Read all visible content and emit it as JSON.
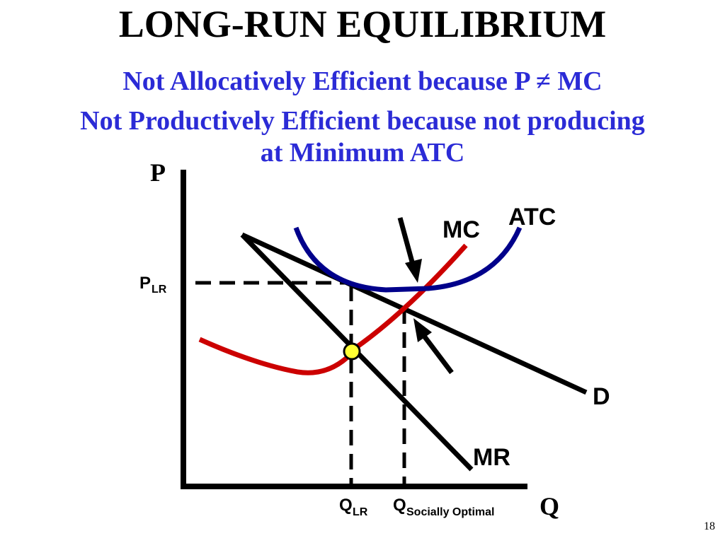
{
  "title": "LONG-RUN EQUILIBRIUM",
  "subtitle_lines": [
    "Not Allocatively Efficient because P ≠ MC",
    "Not Productively Efficient because not producing",
    "at Minimum ATC"
  ],
  "axes": {
    "y_label": "P",
    "x_label": "Q"
  },
  "curve_labels": {
    "mc": "MC",
    "atc": "ATC",
    "demand": "D",
    "mr": "MR"
  },
  "price_label": {
    "main": "P",
    "sub": "LR"
  },
  "quantity_labels": [
    {
      "main": "Q",
      "sub": "LR"
    },
    {
      "main": "Q",
      "sub": "Socially Optimal"
    }
  ],
  "colors": {
    "atc": "#00008b",
    "mc": "#cc0000",
    "subtitle": "#2b2bd6",
    "marker": "#ffff33"
  },
  "page_number": "18"
}
